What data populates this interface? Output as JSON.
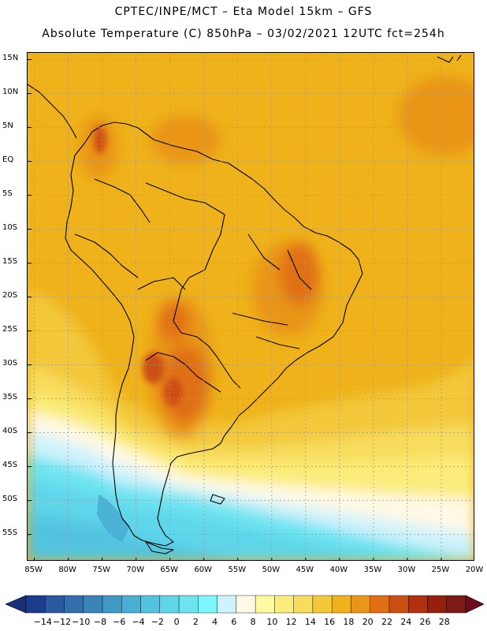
{
  "header": {
    "line1": "CPTEC/INPE/MCT –  Eta Model 15km – GFS",
    "line2": "Absolute Temperature (C) 850hPa – 03/02/2021 12UTC fct=254h"
  },
  "map": {
    "region": "South America",
    "variable": "Absolute Temperature (C) 850hPa",
    "lat_range": [
      -59,
      16
    ],
    "lon_range": [
      -86,
      -20
    ]
  },
  "axes": {
    "lat_labels": [
      "15N",
      "10N",
      "5N",
      "EQ",
      "5S",
      "10S",
      "15S",
      "20S",
      "25S",
      "30S",
      "35S",
      "40S",
      "45S",
      "50S",
      "55S"
    ],
    "lon_labels": [
      "85W",
      "80W",
      "75W",
      "70W",
      "65W",
      "60W",
      "55W",
      "50W",
      "45W",
      "40W",
      "35W",
      "30W",
      "25W",
      "20W"
    ]
  },
  "colorbar": {
    "labels": [
      "-14",
      "-12",
      "-10",
      "-8",
      "-6",
      "-4",
      "-2",
      "0",
      "2",
      "4",
      "6",
      "8",
      "10",
      "12",
      "14",
      "16",
      "18",
      "20",
      "22",
      "24",
      "26",
      "28"
    ],
    "colors": [
      "#1c3c8c",
      "#2a5a9e",
      "#3370ab",
      "#3a84b8",
      "#419ac6",
      "#49afd4",
      "#52c4e0",
      "#5fd6ea",
      "#6ee4f1",
      "#7ef6fd",
      "#cff2fc",
      "#fff9e6",
      "#fefaa0",
      "#fbec7c",
      "#f8dd5d",
      "#f3c83a",
      "#efb21a",
      "#e99519",
      "#e06f15",
      "#cc4f12",
      "#b2300e",
      "#94200d",
      "#7d1a17"
    ],
    "arrow_left": "#1a2f78",
    "arrow_right": "#6c0b21"
  }
}
